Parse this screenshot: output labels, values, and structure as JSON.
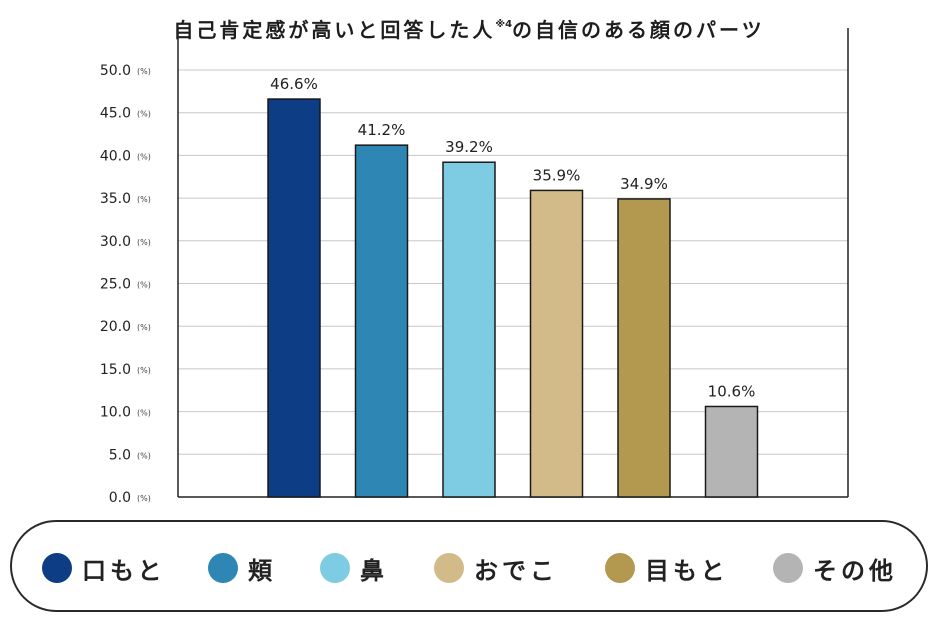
{
  "title": {
    "main": "自己肯定感が高いと回答した人",
    "note": "※4",
    "suffix": "の自信のある顔のパーツ"
  },
  "chart_data": {
    "type": "bar",
    "categories": [
      "口もと",
      "頬",
      "鼻",
      "おでこ",
      "目もと",
      "その他"
    ],
    "values": [
      46.6,
      41.2,
      39.2,
      35.9,
      34.9,
      10.6
    ],
    "data_labels": [
      "46.6%",
      "41.2%",
      "39.2%",
      "35.9%",
      "34.9%",
      "10.6%"
    ],
    "colors": [
      "#0c3d85",
      "#2e86b5",
      "#7ecbe4",
      "#d2bb88",
      "#b39850",
      "#b4b4b4"
    ],
    "ylim": [
      0,
      50
    ],
    "yticks": [
      "0.0",
      "5.0",
      "10.0",
      "15.0",
      "20.0",
      "25.0",
      "30.0",
      "35.0",
      "40.0",
      "45.0",
      "50.0"
    ],
    "ytick_unit": "(%)",
    "grid": true,
    "legend_position": "bottom"
  }
}
